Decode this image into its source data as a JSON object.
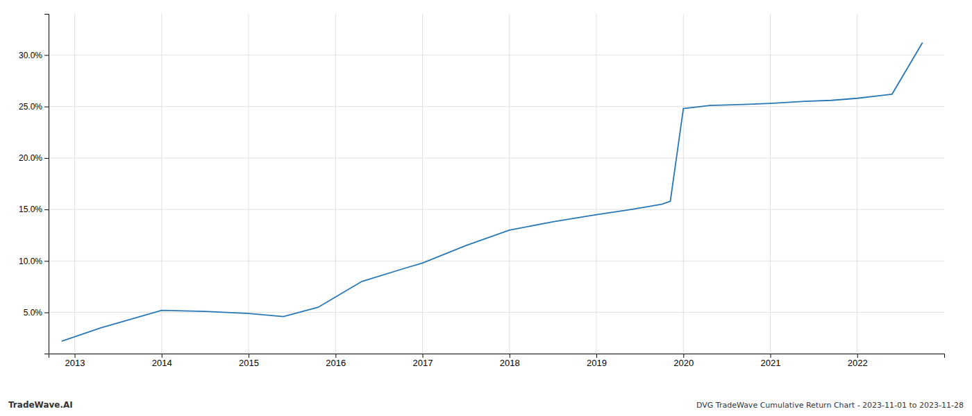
{
  "chart_data": {
    "type": "line",
    "title": "DVG TradeWave Cumulative Return Chart - 2023-11-01 to 2023-11-28",
    "annotations": [
      "TradeWave.AI"
    ],
    "x": [
      2012.85,
      2013.3,
      2014.0,
      2014.5,
      2015.0,
      2015.4,
      2015.8,
      2016.3,
      2016.8,
      2017.0,
      2017.5,
      2018.0,
      2018.5,
      2019.0,
      2019.4,
      2019.75,
      2019.85,
      2020.0,
      2020.3,
      2020.7,
      2021.0,
      2021.4,
      2021.7,
      2022.0,
      2022.4,
      2022.75
    ],
    "values": [
      2.2,
      3.5,
      5.2,
      5.1,
      4.9,
      4.6,
      5.5,
      8.0,
      9.3,
      9.8,
      11.5,
      13.0,
      13.8,
      14.5,
      15.0,
      15.5,
      15.8,
      24.8,
      25.1,
      25.2,
      25.3,
      25.5,
      25.6,
      25.8,
      26.2,
      31.2
    ],
    "color": "#2878b5",
    "xlim": [
      2012.7,
      2023.0
    ],
    "ylim": [
      1.0,
      34.0
    ],
    "xticks": [
      2013,
      2014,
      2015,
      2016,
      2017,
      2018,
      2019,
      2020,
      2021,
      2022
    ],
    "yticks": [
      {
        "value": 5.0,
        "label": "5.0%"
      },
      {
        "value": 10.0,
        "label": "10.0%"
      },
      {
        "value": 15.0,
        "label": "15.0%"
      },
      {
        "value": 20.0,
        "label": "20.0%"
      },
      {
        "value": 25.0,
        "label": "25.0%"
      },
      {
        "value": 30.0,
        "label": "30.0%"
      }
    ],
    "grid": true
  }
}
